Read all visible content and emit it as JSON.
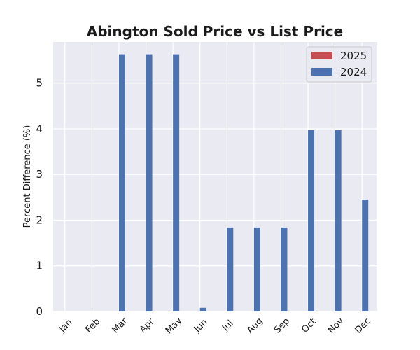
{
  "chart_data": {
    "type": "bar",
    "title": "Abington Sold Price vs List Price",
    "xlabel": "",
    "ylabel": "Percent Difference (%)",
    "categories": [
      "Jan",
      "Feb",
      "Mar",
      "Apr",
      "May",
      "Jun",
      "Jul",
      "Aug",
      "Sep",
      "Oct",
      "Nov",
      "Dec"
    ],
    "series": [
      {
        "name": "2025",
        "color": "#c44e52",
        "values": [
          0,
          0,
          0,
          0,
          0,
          0,
          0,
          0,
          0,
          0,
          0,
          0
        ]
      },
      {
        "name": "2024",
        "color": "#4c72b0",
        "values": [
          0,
          0,
          5.63,
          5.63,
          5.63,
          0.08,
          1.84,
          1.84,
          1.84,
          3.97,
          3.97,
          2.45
        ]
      }
    ],
    "ylim": [
      0,
      5.9
    ],
    "yticks": [
      0,
      1,
      2,
      3,
      4,
      5
    ],
    "grid": true,
    "legend": "top-right",
    "background_color": "#eaeaf2"
  }
}
